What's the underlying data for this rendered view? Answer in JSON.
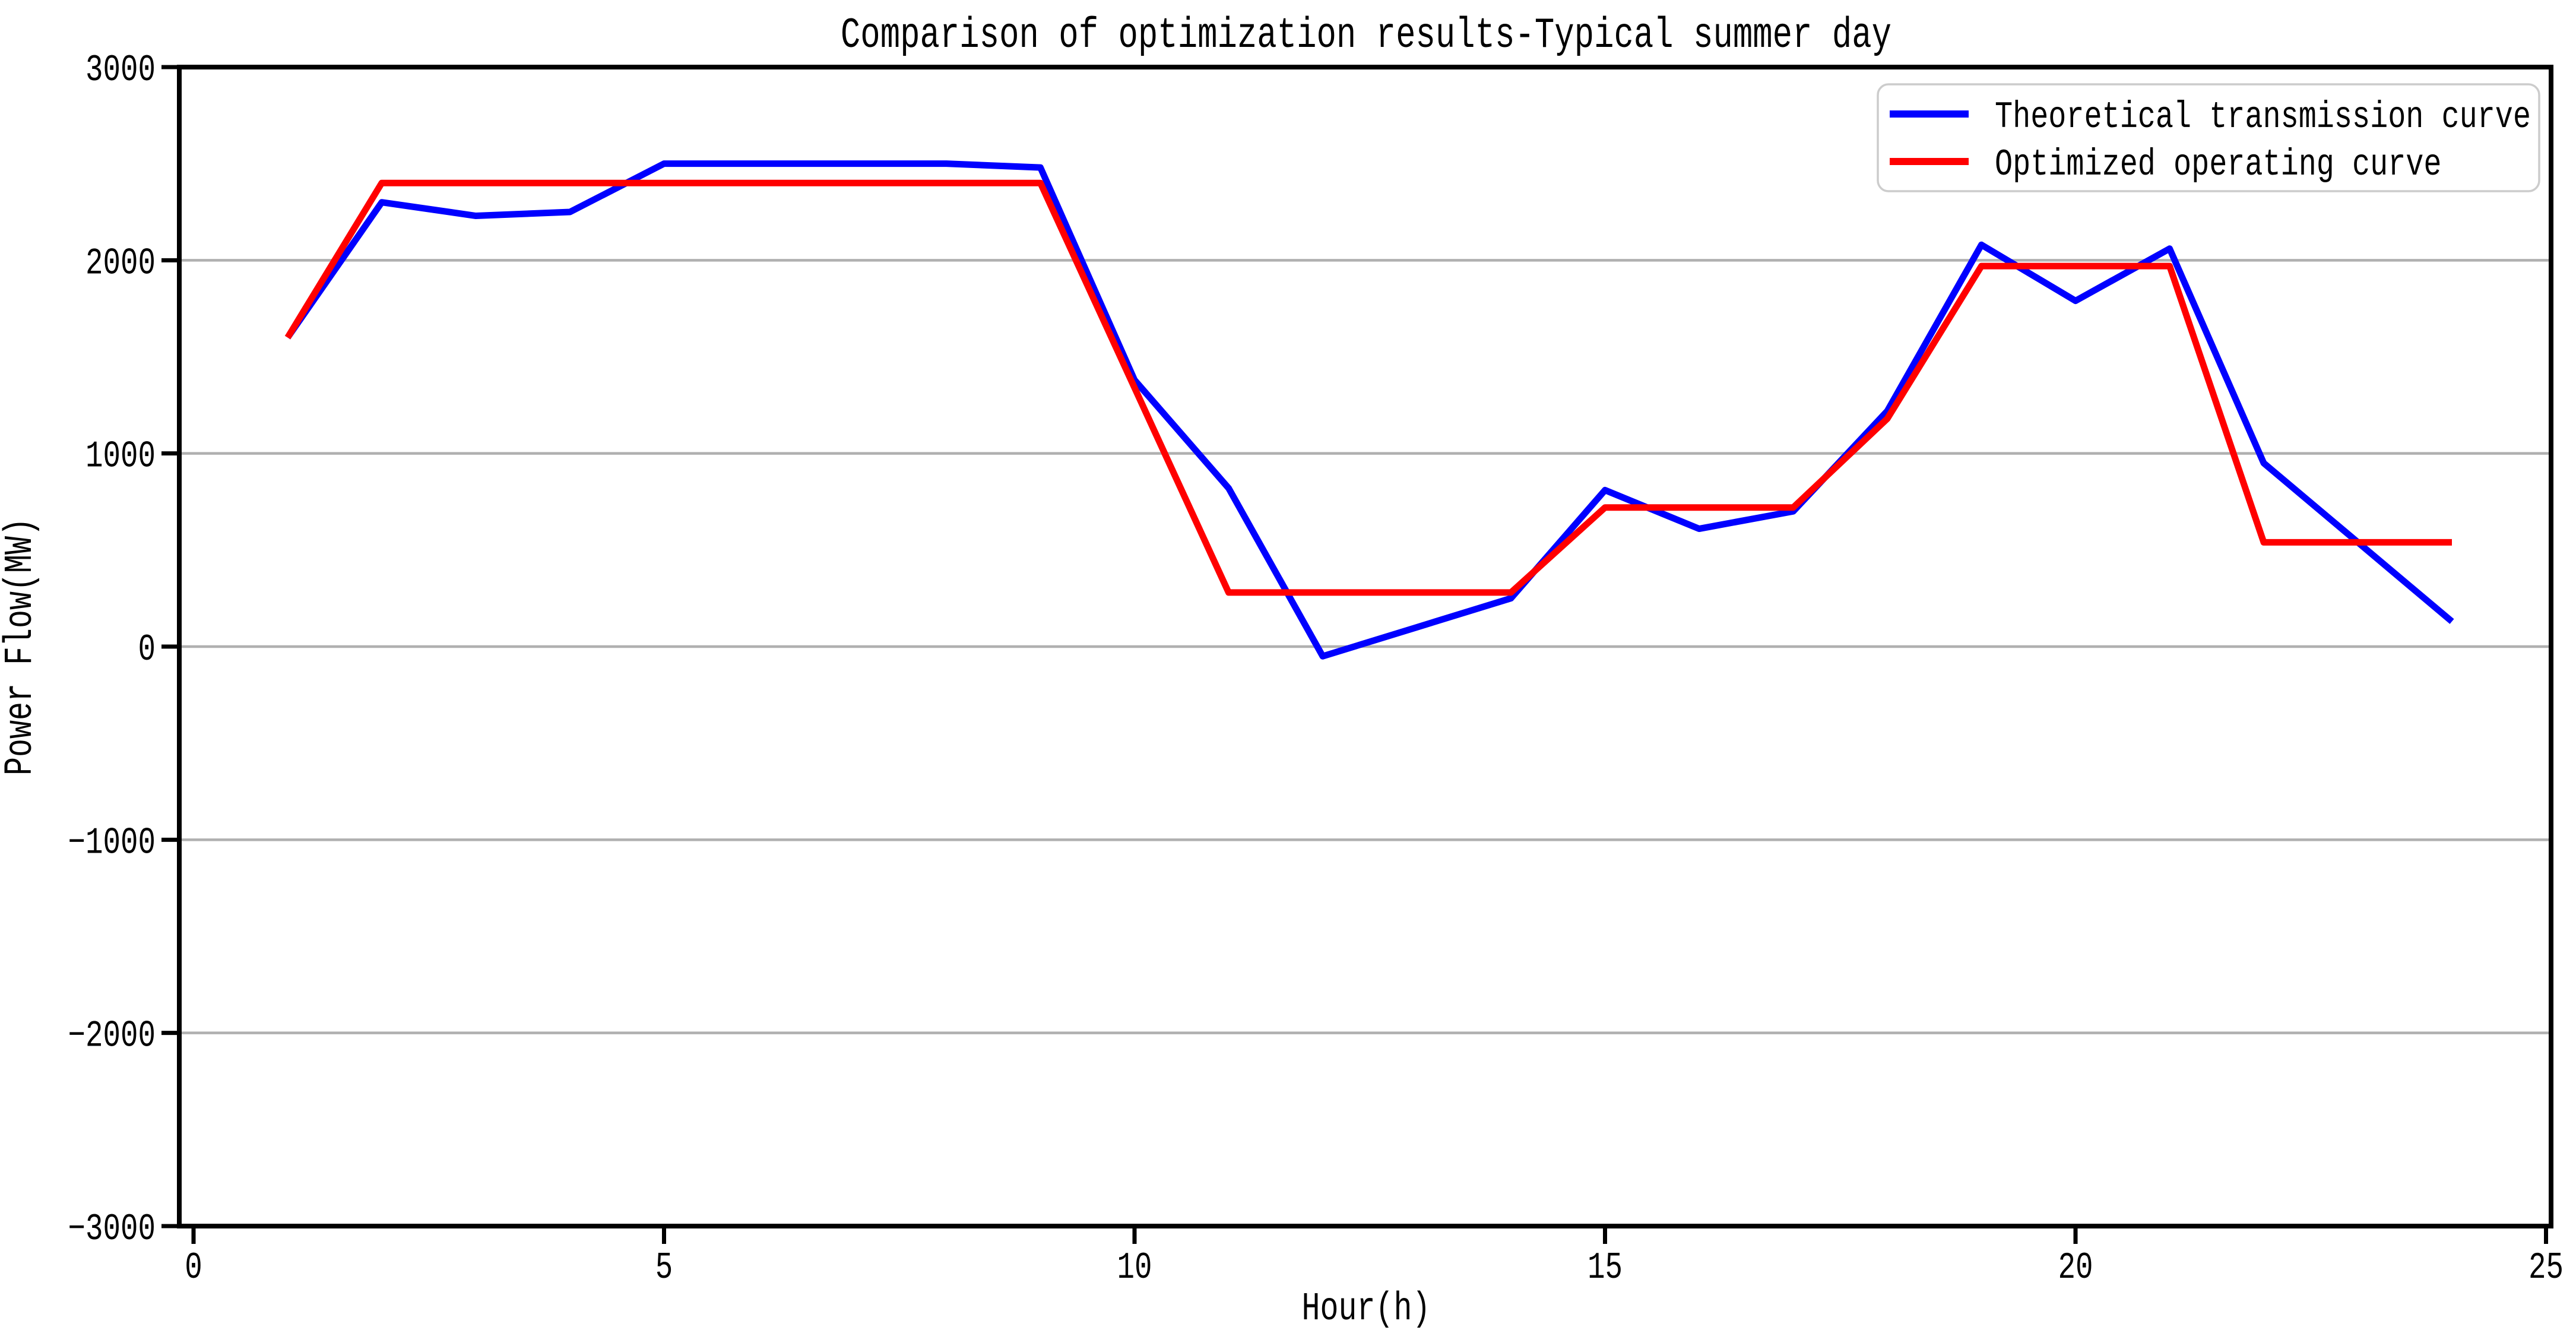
{
  "chart_data": {
    "type": "line",
    "title": "Comparison of optimization results-Typical summer day",
    "xlabel": "Hour(h)",
    "ylabel": "Power Flow(MW)",
    "xlim": [
      0,
      25
    ],
    "ylim": [
      -3000,
      3000
    ],
    "xticks": [
      0,
      5,
      10,
      15,
      20,
      25
    ],
    "yticks": [
      -3000,
      -2000,
      -1000,
      0,
      1000,
      2000,
      3000
    ],
    "grid": "horizontal-gridlines-only",
    "legend_position": "upper-right",
    "x": [
      1,
      2,
      3,
      4,
      5,
      6,
      7,
      8,
      9,
      10,
      11,
      12,
      13,
      14,
      15,
      16,
      17,
      18,
      19,
      20,
      21,
      22,
      23,
      24
    ],
    "series": [
      {
        "name": "Theoretical transmission curve",
        "color": "#0000ff",
        "values": [
          1600,
          2300,
          2230,
          2250,
          2500,
          2500,
          2500,
          2500,
          2480,
          1380,
          820,
          -50,
          100,
          250,
          810,
          610,
          700,
          1220,
          2080,
          1790,
          2060,
          950,
          540,
          130
        ]
      },
      {
        "name": "Optimized operating curve",
        "color": "#ff0000",
        "values": [
          1600,
          2400,
          2400,
          2400,
          2400,
          2400,
          2400,
          2400,
          2400,
          1340,
          280,
          280,
          280,
          280,
          720,
          720,
          720,
          1180,
          1970,
          1970,
          1970,
          540,
          540,
          540
        ]
      }
    ]
  },
  "style": {
    "background": "#ffffff",
    "grid_color": "#b0b0b0",
    "axis_color": "#000000",
    "text_color": "#000000",
    "legend_border_color": "#cccccc",
    "legend_fill": "#ffffff"
  }
}
